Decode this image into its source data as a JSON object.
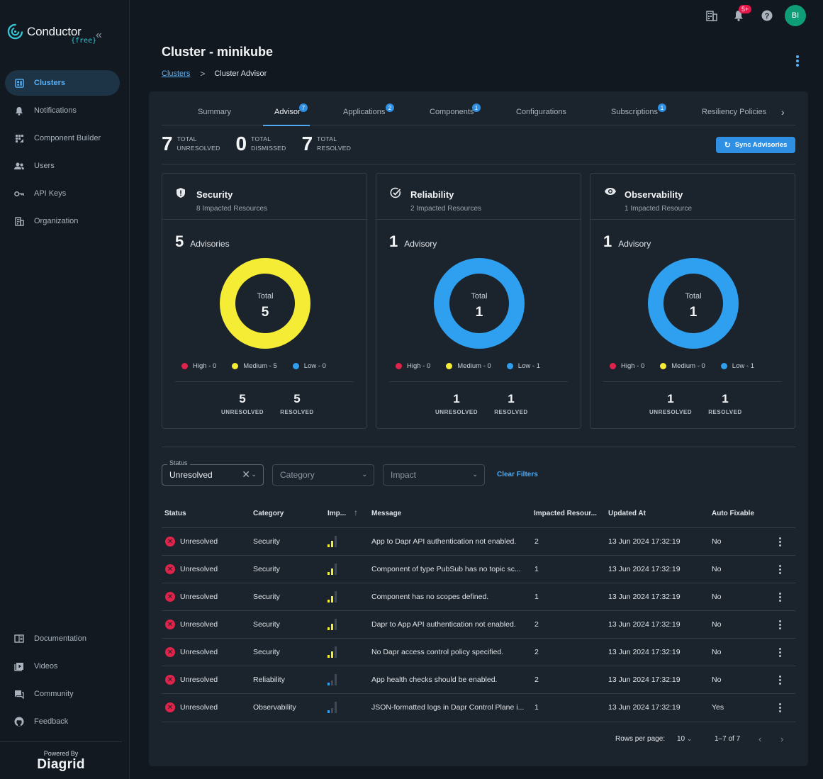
{
  "app": {
    "brand": "Conductor",
    "plan": "{free}",
    "powered_by": "Powered By",
    "powered_brand": "Diagrid"
  },
  "sidebar": {
    "items": [
      {
        "label": "Clusters",
        "icon": "dashboard-icon",
        "active": true
      },
      {
        "label": "Notifications",
        "icon": "bell-icon"
      },
      {
        "label": "Component Builder",
        "icon": "builder-icon"
      },
      {
        "label": "Users",
        "icon": "users-icon"
      },
      {
        "label": "API Keys",
        "icon": "key-icon"
      },
      {
        "label": "Organization",
        "icon": "building-icon"
      }
    ],
    "bottom_items": [
      {
        "label": "Documentation",
        "icon": "book-icon"
      },
      {
        "label": "Videos",
        "icon": "video-icon"
      },
      {
        "label": "Community",
        "icon": "chat-icon"
      },
      {
        "label": "Feedback",
        "icon": "github-icon"
      }
    ]
  },
  "topbar": {
    "notifications_badge": "5+",
    "avatar_initials": "BI"
  },
  "page": {
    "title": "Cluster - minikube",
    "breadcrumb_link": "Clusters",
    "breadcrumb_sep": ">",
    "breadcrumb_current": "Cluster Advisor"
  },
  "tabs": [
    {
      "label": "Summary"
    },
    {
      "label": "Advisor",
      "badge": "7",
      "active": true
    },
    {
      "label": "Applications",
      "badge": "2"
    },
    {
      "label": "Components",
      "badge": "1"
    },
    {
      "label": "Configurations"
    },
    {
      "label": "Subscriptions",
      "badge": "1"
    },
    {
      "label": "Resiliency Policies"
    }
  ],
  "totals": {
    "unresolved": {
      "value": "7",
      "line1": "TOTAL",
      "line2": "UNRESOLVED"
    },
    "dismissed": {
      "value": "0",
      "line1": "TOTAL",
      "line2": "DISMISSED"
    },
    "resolved": {
      "value": "7",
      "line1": "TOTAL",
      "line2": "RESOLVED"
    },
    "sync_label": "Sync Advisories"
  },
  "cards": [
    {
      "title": "Security",
      "subtitle": "8 Impacted Resources",
      "icon": "shield-icon",
      "count": "5",
      "count_label": "Advisories",
      "donut_label": "Total",
      "donut_value": "5",
      "donut_color": "#f5ec35",
      "high": "High - 0",
      "medium": "Medium - 5",
      "low": "Low - 0",
      "unresolved": "5",
      "resolved": "5"
    },
    {
      "title": "Reliability",
      "subtitle": "2 Impacted Resources",
      "icon": "check-badge-icon",
      "count": "1",
      "count_label": "Advisory",
      "donut_label": "Total",
      "donut_value": "1",
      "donut_color": "#2ea0ef",
      "high": "High - 0",
      "medium": "Medium - 0",
      "low": "Low - 1",
      "unresolved": "1",
      "resolved": "1"
    },
    {
      "title": "Observability",
      "subtitle": "1 Impacted Resource",
      "icon": "eye-icon",
      "count": "1",
      "count_label": "Advisory",
      "donut_label": "Total",
      "donut_value": "1",
      "donut_color": "#2ea0ef",
      "high": "High - 0",
      "medium": "Medium - 0",
      "low": "Low - 1",
      "unresolved": "1",
      "resolved": "1"
    }
  ],
  "stat_labels": {
    "unresolved": "UNRESOLVED",
    "resolved": "RESOLVED"
  },
  "colors": {
    "high": "#e0234a",
    "medium": "#f5ec35",
    "low": "#2ea0ef",
    "accent": "#2f8fe3"
  },
  "filters": {
    "status_label": "Status",
    "status_value": "Unresolved",
    "category_placeholder": "Category",
    "impact_placeholder": "Impact",
    "clear": "Clear Filters"
  },
  "table": {
    "headers": [
      "Status",
      "Category",
      "Imp...",
      "Message",
      "Impacted Resour...",
      "Updated At",
      "Auto Fixable"
    ],
    "rows": [
      {
        "status": "Unresolved",
        "category": "Security",
        "impact": "medium",
        "message": "App to Dapr API authentication not enabled.",
        "impacted": "2",
        "updated": "13 Jun 2024 17:32:19",
        "auto": "No"
      },
      {
        "status": "Unresolved",
        "category": "Security",
        "impact": "medium",
        "message": "Component of type PubSub has no topic sc...",
        "impacted": "1",
        "updated": "13 Jun 2024 17:32:19",
        "auto": "No"
      },
      {
        "status": "Unresolved",
        "category": "Security",
        "impact": "medium",
        "message": "Component has no scopes defined.",
        "impacted": "1",
        "updated": "13 Jun 2024 17:32:19",
        "auto": "No"
      },
      {
        "status": "Unresolved",
        "category": "Security",
        "impact": "medium",
        "message": "Dapr to App API authentication not enabled.",
        "impacted": "2",
        "updated": "13 Jun 2024 17:32:19",
        "auto": "No"
      },
      {
        "status": "Unresolved",
        "category": "Security",
        "impact": "medium",
        "message": "No Dapr access control policy specified.",
        "impacted": "2",
        "updated": "13 Jun 2024 17:32:19",
        "auto": "No"
      },
      {
        "status": "Unresolved",
        "category": "Reliability",
        "impact": "low",
        "message": "App health checks should be enabled.",
        "impacted": "2",
        "updated": "13 Jun 2024 17:32:19",
        "auto": "No"
      },
      {
        "status": "Unresolved",
        "category": "Observability",
        "impact": "low",
        "message": "JSON-formatted logs in Dapr Control Plane i...",
        "impacted": "1",
        "updated": "13 Jun 2024 17:32:19",
        "auto": "Yes"
      }
    ]
  },
  "pagination": {
    "rows_per_page_label": "Rows per page:",
    "rows_per_page": "10",
    "range": "1–7 of 7"
  }
}
